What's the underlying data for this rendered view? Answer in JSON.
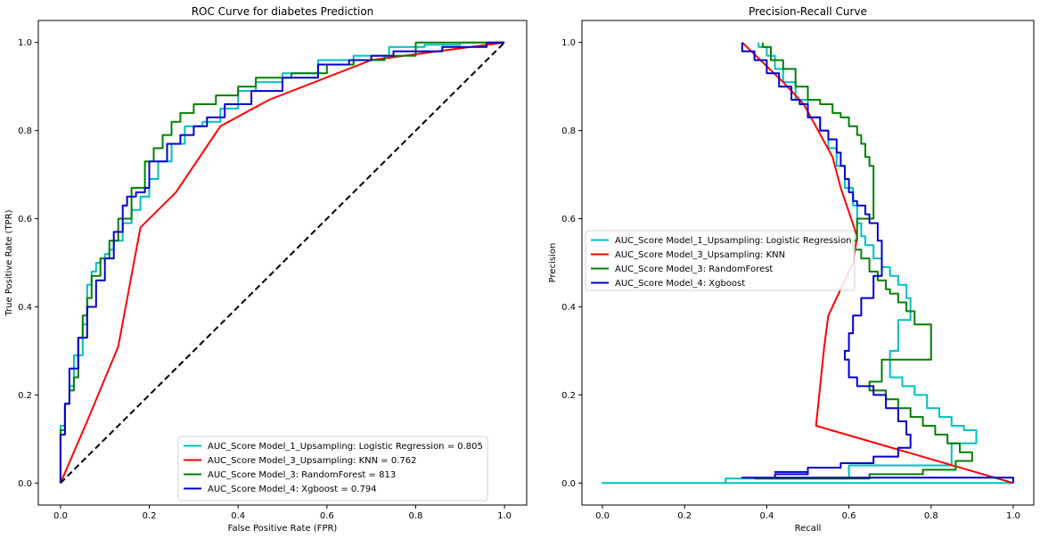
{
  "chart_data": [
    {
      "type": "line",
      "title": "ROC Curve for diabetes Prediction",
      "xlabel": "False Positive Rate (FPR)",
      "ylabel": "True Positive Rate (TPR)",
      "xlim": [
        -0.05,
        1.05
      ],
      "ylim": [
        -0.05,
        1.05
      ],
      "xticks": [
        0.0,
        0.2,
        0.4,
        0.6,
        0.8,
        1.0
      ],
      "yticks": [
        0.0,
        0.2,
        0.4,
        0.6,
        0.8,
        1.0
      ],
      "xtick_labels": [
        "0.0",
        "0.2",
        "0.4",
        "0.6",
        "0.8",
        "1.0"
      ],
      "ytick_labels": [
        "0.0",
        "0.2",
        "0.4",
        "0.6",
        "0.8",
        "1.0"
      ],
      "grid": false,
      "legend_position": "lower-right",
      "series": [
        {
          "name": "AUC_Score Model_1_Upsampling: Logistic Regression = 0.805",
          "color": "#00bfbf",
          "step": true,
          "x": [
            0,
            0.01,
            0.02,
            0.03,
            0.05,
            0.06,
            0.07,
            0.08,
            0.09,
            0.1,
            0.11,
            0.12,
            0.14,
            0.16,
            0.18,
            0.2,
            0.22,
            0.25,
            0.28,
            0.32,
            0.36,
            0.4,
            0.44,
            0.5,
            0.58,
            0.66,
            0.74,
            0.82,
            0.9,
            1.0
          ],
          "y": [
            0,
            0.13,
            0.18,
            0.22,
            0.29,
            0.36,
            0.45,
            0.48,
            0.5,
            0.51,
            0.52,
            0.53,
            0.55,
            0.59,
            0.62,
            0.65,
            0.69,
            0.73,
            0.77,
            0.81,
            0.82,
            0.85,
            0.89,
            0.91,
            0.93,
            0.96,
            0.97,
            0.99,
            0.995,
            1.0
          ]
        },
        {
          "name": "AUC_Score Model_3_Upsampling: KNN = 0.762",
          "color": "#ff0000",
          "step": false,
          "x": [
            0,
            0.06,
            0.13,
            0.18,
            0.26,
            0.36,
            0.47,
            0.7,
            1.0
          ],
          "y": [
            0,
            0.14,
            0.31,
            0.58,
            0.66,
            0.81,
            0.87,
            0.96,
            1.0
          ]
        },
        {
          "name": "AUC_Score Model_3: RandomForest = 813",
          "color": "#008000",
          "step": true,
          "x": [
            0,
            0.01,
            0.02,
            0.03,
            0.04,
            0.05,
            0.06,
            0.07,
            0.09,
            0.11,
            0.13,
            0.16,
            0.19,
            0.21,
            0.23,
            0.25,
            0.27,
            0.3,
            0.32,
            0.35,
            0.4,
            0.44,
            0.52,
            0.6,
            0.66,
            0.73,
            0.8,
            0.88,
            1.0
          ],
          "y": [
            0,
            0.12,
            0.18,
            0.21,
            0.24,
            0.33,
            0.38,
            0.42,
            0.47,
            0.51,
            0.55,
            0.6,
            0.67,
            0.73,
            0.76,
            0.79,
            0.82,
            0.84,
            0.86,
            0.86,
            0.88,
            0.9,
            0.92,
            0.93,
            0.95,
            0.96,
            0.97,
            1.0,
            1.0
          ]
        },
        {
          "name": "AUC_Score Model_4: Xgboost = 0.794",
          "color": "#0000cc",
          "step": true,
          "x": [
            0,
            0.01,
            0.02,
            0.04,
            0.06,
            0.08,
            0.1,
            0.12,
            0.14,
            0.15,
            0.17,
            0.19,
            0.2,
            0.24,
            0.27,
            0.3,
            0.33,
            0.37,
            0.43,
            0.5,
            0.58,
            0.65,
            0.7,
            0.75,
            0.8,
            0.86,
            0.96,
            1.0
          ],
          "y": [
            0,
            0.11,
            0.18,
            0.26,
            0.33,
            0.4,
            0.46,
            0.51,
            0.57,
            0.63,
            0.65,
            0.66,
            0.67,
            0.73,
            0.77,
            0.79,
            0.81,
            0.83,
            0.86,
            0.89,
            0.92,
            0.95,
            0.96,
            0.97,
            0.98,
            0.98,
            0.99,
            1.0
          ]
        },
        {
          "name": "",
          "color": "#000000",
          "dashed": true,
          "step": false,
          "x": [
            0,
            1
          ],
          "y": [
            0,
            1
          ]
        }
      ]
    },
    {
      "type": "line",
      "title": "Precision-Recall Curve",
      "xlabel": "Recall",
      "ylabel": "Precision",
      "xlim": [
        -0.05,
        1.05
      ],
      "ylim": [
        -0.05,
        1.05
      ],
      "xticks": [
        0.0,
        0.2,
        0.4,
        0.6,
        0.8,
        1.0
      ],
      "yticks": [
        0.0,
        0.2,
        0.4,
        0.6,
        0.8,
        1.0
      ],
      "xtick_labels": [
        "0.0",
        "0.2",
        "0.4",
        "0.6",
        "0.8",
        "1.0"
      ],
      "ytick_labels": [
        "0.0",
        "0.2",
        "0.4",
        "0.6",
        "0.8",
        "1.0"
      ],
      "grid": false,
      "legend_position": "center-left",
      "series": [
        {
          "name": "AUC_Score Model_1_Upsampling: Logistic Regression",
          "color": "#00bfbf",
          "step": true,
          "x": [
            0.38,
            0.4,
            0.42,
            0.44,
            0.47,
            0.5,
            0.53,
            0.55,
            0.57,
            0.59,
            0.61,
            0.62,
            0.63,
            0.64,
            0.66,
            0.68,
            0.7,
            0.72,
            0.74,
            0.75,
            0.72,
            0.7,
            0.73,
            0.76,
            0.79,
            0.82,
            0.85,
            0.88,
            0.91,
            0.85,
            0.6,
            0.3,
            0.0,
            1.0
          ],
          "y": [
            1.0,
            0.99,
            0.97,
            0.94,
            0.91,
            0.87,
            0.83,
            0.8,
            0.76,
            0.72,
            0.67,
            0.63,
            0.59,
            0.56,
            0.54,
            0.51,
            0.49,
            0.47,
            0.45,
            0.42,
            0.37,
            0.3,
            0.24,
            0.22,
            0.2,
            0.17,
            0.15,
            0.13,
            0.12,
            0.09,
            0.04,
            0.01,
            0.0,
            0.0
          ]
        },
        {
          "name": "AUC_Score Model_3_Upsampling: KNN",
          "color": "#ff0000",
          "step": false,
          "x": [
            0.34,
            0.44,
            0.49,
            0.56,
            0.58,
            0.62,
            0.61,
            0.55,
            0.54,
            0.52,
            1.0
          ],
          "y": [
            1.0,
            0.91,
            0.86,
            0.74,
            0.67,
            0.56,
            0.5,
            0.38,
            0.31,
            0.13,
            0.0
          ]
        },
        {
          "name": "AUC_Score Model_3: RandomForest",
          "color": "#008000",
          "step": true,
          "x": [
            0.39,
            0.41,
            0.44,
            0.47,
            0.5,
            0.53,
            0.56,
            0.58,
            0.6,
            0.62,
            0.63,
            0.64,
            0.65,
            0.66,
            0.62,
            0.61,
            0.63,
            0.65,
            0.67,
            0.69,
            0.7,
            0.72,
            0.74,
            0.76,
            0.8,
            0.68,
            0.65,
            0.69,
            0.72,
            0.75,
            0.78,
            0.81,
            0.84,
            0.87,
            0.9,
            0.86,
            0.78,
            0.65,
            0.5,
            0.37
          ],
          "y": [
            1.0,
            0.99,
            0.96,
            0.94,
            0.9,
            0.87,
            0.86,
            0.84,
            0.83,
            0.81,
            0.79,
            0.77,
            0.74,
            0.72,
            0.6,
            0.55,
            0.53,
            0.51,
            0.48,
            0.46,
            0.44,
            0.43,
            0.41,
            0.39,
            0.36,
            0.28,
            0.23,
            0.21,
            0.19,
            0.17,
            0.15,
            0.13,
            0.11,
            0.09,
            0.07,
            0.05,
            0.03,
            0.02,
            0.01,
            0.01
          ]
        },
        {
          "name": "AUC_Score Model_4: Xgboost",
          "color": "#0000cc",
          "step": true,
          "x": [
            0.34,
            0.37,
            0.4,
            0.43,
            0.46,
            0.48,
            0.5,
            0.53,
            0.55,
            0.57,
            0.58,
            0.59,
            0.6,
            0.61,
            0.62,
            0.64,
            0.65,
            0.67,
            0.68,
            0.66,
            0.63,
            0.61,
            0.6,
            0.59,
            0.6,
            0.62,
            0.66,
            0.69,
            0.72,
            0.74,
            0.75,
            0.72,
            0.66,
            0.58,
            0.5,
            0.42,
            0.5,
            0.42,
            0.34,
            1.0,
            1.0
          ],
          "y": [
            1.0,
            0.98,
            0.96,
            0.93,
            0.9,
            0.87,
            0.86,
            0.83,
            0.8,
            0.78,
            0.75,
            0.72,
            0.69,
            0.66,
            0.64,
            0.63,
            0.61,
            0.59,
            0.55,
            0.47,
            0.42,
            0.38,
            0.34,
            0.3,
            0.28,
            0.24,
            0.22,
            0.2,
            0.17,
            0.14,
            0.11,
            0.08,
            0.06,
            0.045,
            0.035,
            0.025,
            0.025,
            0.02,
            0.012,
            0.012,
            0.0
          ]
        }
      ]
    }
  ]
}
